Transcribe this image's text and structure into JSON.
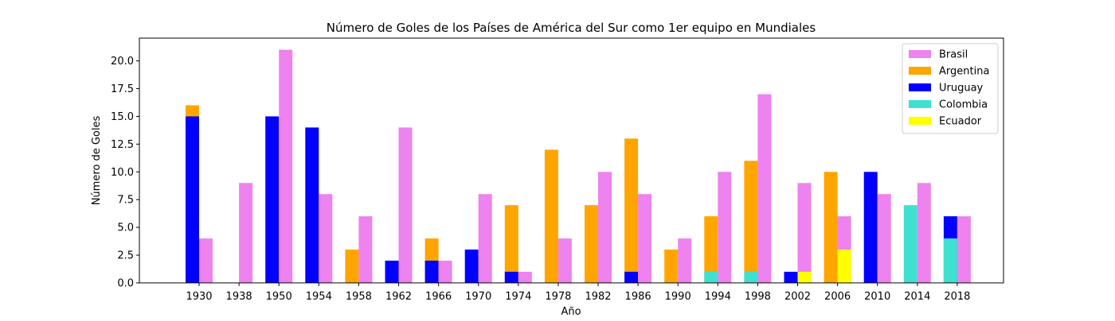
{
  "chart_data": {
    "type": "bar",
    "title": "Número de Goles de los Países de América del Sur como 1er equipo en Mundiales",
    "xlabel": "Año",
    "ylabel": "Número de Goles",
    "ylim": [
      0,
      22.05
    ],
    "yticks": [
      "0.0",
      "2.5",
      "5.0",
      "7.5",
      "10.0",
      "12.5",
      "15.0",
      "17.5",
      "20.0"
    ],
    "categories": [
      "1930",
      "1938",
      "1950",
      "1954",
      "1958",
      "1962",
      "1966",
      "1970",
      "1974",
      "1978",
      "1982",
      "1986",
      "1990",
      "1994",
      "1998",
      "2002",
      "2006",
      "2010",
      "2014",
      "2018"
    ],
    "legend_position": "top-right",
    "grid": false,
    "series": [
      {
        "name": "Brasil",
        "color": "#ee82ee",
        "values": [
          4,
          9,
          21,
          8,
          6,
          14,
          2,
          8,
          1,
          4,
          10,
          8,
          4,
          10,
          17,
          9,
          6,
          8,
          9,
          6
        ]
      },
      {
        "name": "Argentina",
        "color": "#ffa500",
        "values": [
          16,
          0,
          0,
          0,
          3,
          0,
          4,
          0,
          7,
          12,
          7,
          13,
          3,
          6,
          11,
          0,
          10,
          0,
          0,
          0
        ]
      },
      {
        "name": "Uruguay",
        "color": "#0000ff",
        "values": [
          15,
          0,
          15,
          14,
          0,
          2,
          2,
          3,
          1,
          0,
          0,
          1,
          0,
          0,
          0,
          1,
          0,
          10,
          0,
          6
        ]
      },
      {
        "name": "Colombia",
        "color": "#40e0d0",
        "values": [
          0,
          0,
          0,
          0,
          0,
          0,
          0,
          0,
          0,
          0,
          0,
          0,
          0,
          1,
          1,
          0,
          0,
          0,
          7,
          4
        ]
      },
      {
        "name": "Ecuador",
        "color": "#ffff00",
        "values": [
          0,
          0,
          0,
          0,
          0,
          0,
          0,
          0,
          0,
          0,
          0,
          0,
          0,
          0,
          0,
          1,
          3,
          0,
          0,
          0
        ]
      }
    ]
  }
}
